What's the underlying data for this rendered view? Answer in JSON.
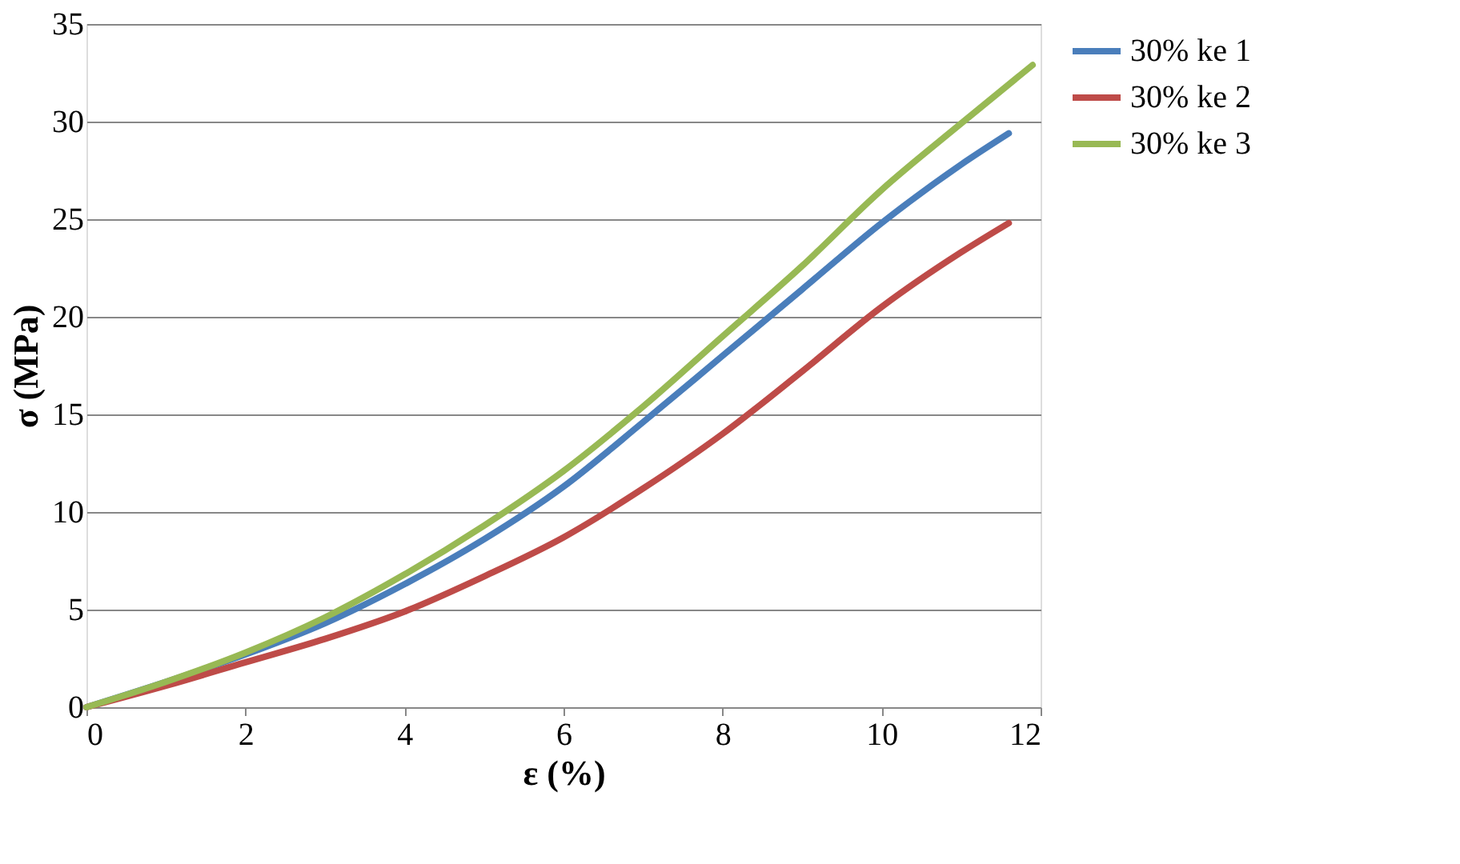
{
  "chart_data": {
    "type": "line",
    "xlabel": "ε (%)",
    "ylabel": "σ (MPa)",
    "xlim": [
      0,
      12
    ],
    "xticks": [
      0,
      2,
      4,
      6,
      8,
      10,
      12
    ],
    "ylim": [
      0,
      35
    ],
    "yticks": [
      0,
      5,
      10,
      15,
      20,
      25,
      30,
      35
    ],
    "grid": "y",
    "legend": "right",
    "marker": "none",
    "line_style": "solid",
    "series": [
      {
        "name": "30% ke 1",
        "color": "#4a7ebb",
        "x": [
          0,
          1,
          2,
          3,
          4,
          5,
          6,
          7,
          8,
          9,
          10,
          11,
          11.6
        ],
        "values": [
          0,
          1.3,
          2.7,
          4.3,
          6.3,
          8.6,
          11.3,
          14.6,
          18,
          21.4,
          24.8,
          27.8,
          29.4
        ]
      },
      {
        "name": "30% ke 2",
        "color": "#be4b48",
        "x": [
          0,
          1,
          2,
          3,
          4,
          5,
          6,
          7,
          8,
          9,
          10,
          11,
          11.6
        ],
        "values": [
          0,
          1.1,
          2.3,
          3.5,
          4.9,
          6.7,
          8.7,
          11.2,
          14,
          17.2,
          20.5,
          23.3,
          24.8
        ]
      },
      {
        "name": "30% ke 3",
        "color": "#98b954",
        "x": [
          0,
          1,
          2,
          3,
          4,
          5,
          6,
          7,
          8,
          9,
          10,
          11,
          11.9
        ],
        "values": [
          0,
          1.3,
          2.8,
          4.6,
          6.8,
          9.3,
          12.1,
          15.4,
          19,
          22.6,
          26.5,
          29.9,
          32.9
        ]
      }
    ]
  }
}
